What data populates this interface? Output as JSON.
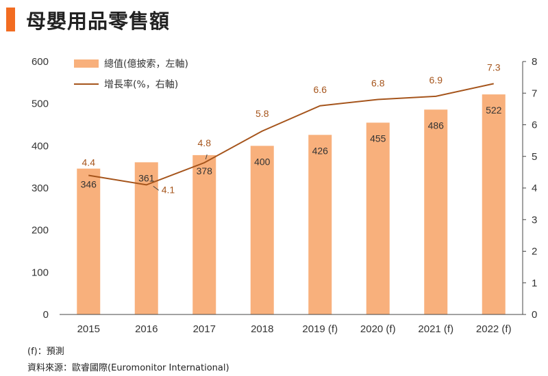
{
  "title": "母嬰用品零售額",
  "colors": {
    "accent": "#f26c21",
    "bar": "#f8b07c",
    "line": "#a5541b",
    "axis": "#444444",
    "text": "#333333"
  },
  "chart_data": {
    "type": "bar+line",
    "categories": [
      "2015",
      "2016",
      "2017",
      "2018",
      "2019 (f)",
      "2020 (f)",
      "2021 (f)",
      "2022 (f)"
    ],
    "series": [
      {
        "name": "總值(億披索，左軸)",
        "type": "bar",
        "axis": "left",
        "values": [
          346,
          361,
          378,
          400,
          426,
          455,
          486,
          522
        ]
      },
      {
        "name": "增長率(%，右軸)",
        "type": "line",
        "axis": "right",
        "values": [
          4.4,
          4.1,
          4.8,
          5.8,
          6.6,
          6.8,
          6.9,
          7.3
        ]
      }
    ],
    "left_axis": {
      "min": 0,
      "max": 600,
      "ticks": [
        0,
        100,
        200,
        300,
        400,
        500,
        600
      ]
    },
    "right_axis": {
      "min": 0,
      "max": 8,
      "ticks": [
        0,
        1,
        2,
        3,
        4,
        5,
        6,
        7,
        8
      ]
    },
    "legend": [
      "總值(億披索，左軸)",
      "增長率(%，右軸)"
    ],
    "bar_labels": [
      "346",
      "361",
      "378",
      "400",
      "426",
      "455",
      "486",
      "522"
    ],
    "line_labels": [
      "4.4",
      "4.1",
      "4.8",
      "5.8",
      "6.6",
      "6.8",
      "6.9",
      "7.3"
    ]
  },
  "footnotes": {
    "forecast": "(f)：預測",
    "source": "資料來源：歐睿國際(Euromonitor International)"
  }
}
